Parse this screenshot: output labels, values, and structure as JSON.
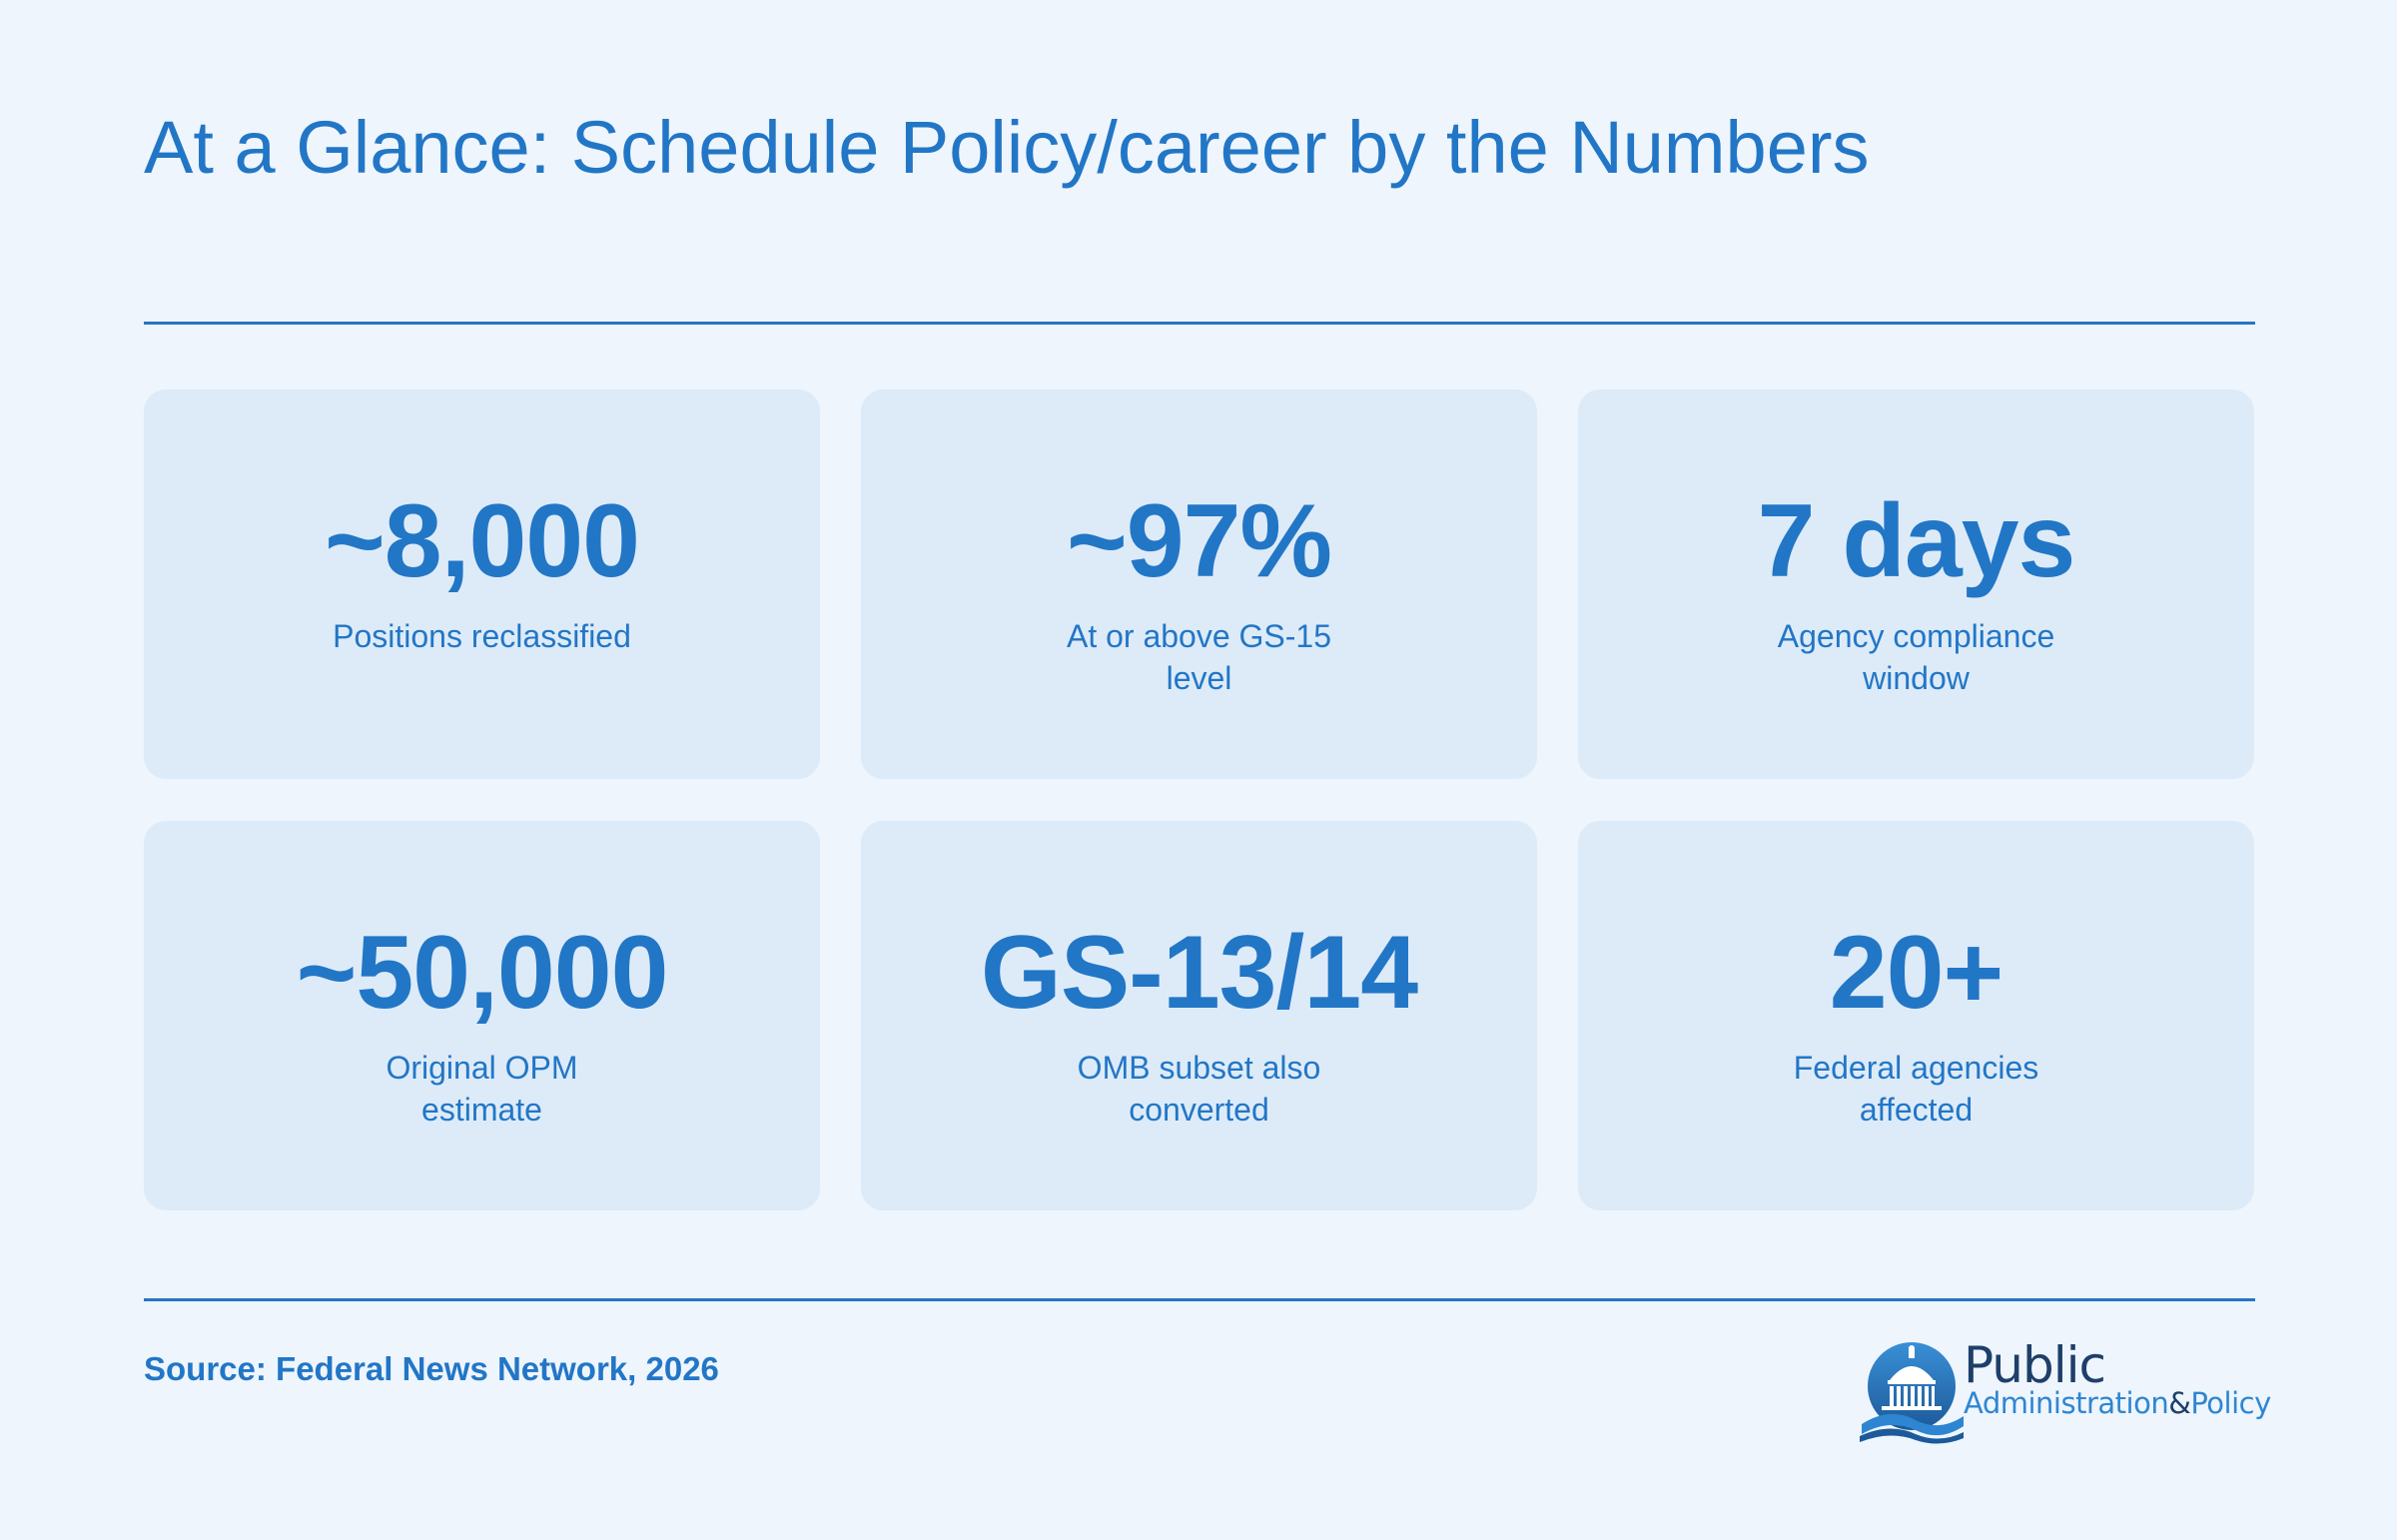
{
  "header": {
    "title": "At a Glance: Schedule Policy/career by the Numbers"
  },
  "stats": [
    {
      "value": "~8,000",
      "label": "Positions reclassified"
    },
    {
      "value": "~97%",
      "label": "At or above GS-15 level"
    },
    {
      "value": "7 days",
      "label": "Agency compliance window"
    },
    {
      "value": "~50,000",
      "label": "Original OPM estimate"
    },
    {
      "value": "GS-13/14",
      "label": "OMB subset also converted"
    },
    {
      "value": "20+",
      "label": "Federal agencies affected"
    }
  ],
  "footer": {
    "source": "Source: Federal News Network, 2026",
    "logo": {
      "line1": "Public",
      "line2_main": "Administration",
      "line2_amp": "&",
      "line2_end": "Policy",
      "icon": "capitol-dome-icon"
    }
  },
  "colors": {
    "background": "#EEF5FC",
    "card": "#DDEBF8",
    "accent": "#2276C6",
    "logo_dark": "#1E3F6A"
  }
}
